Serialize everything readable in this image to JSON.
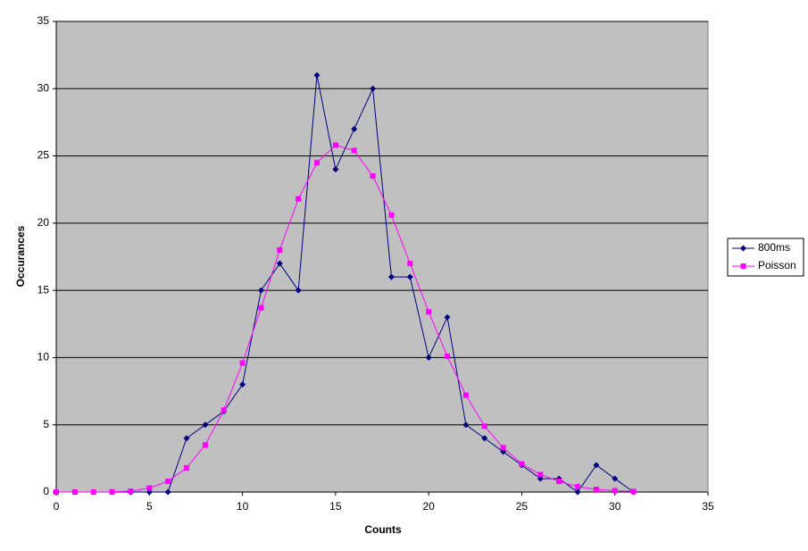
{
  "chart_data": {
    "type": "line",
    "x_label": "Counts",
    "y_label": "Occurances",
    "x": [
      0,
      1,
      2,
      3,
      4,
      5,
      6,
      7,
      8,
      9,
      10,
      11,
      12,
      13,
      14,
      15,
      16,
      17,
      18,
      19,
      20,
      21,
      22,
      23,
      24,
      25,
      26,
      27,
      28,
      29,
      30,
      31
    ],
    "series": [
      {
        "name": "800ms",
        "color": "#000080",
        "marker": "diamond",
        "values": [
          0,
          0,
          0,
          0,
          0,
          0,
          0,
          4,
          5,
          6,
          8,
          15,
          17,
          15,
          31,
          24,
          27,
          30,
          16,
          16,
          10,
          13,
          5,
          4,
          3,
          2,
          1,
          1,
          0,
          2,
          1,
          0
        ]
      },
      {
        "name": "Poisson",
        "color": "#ff00ff",
        "marker": "square",
        "values": [
          0,
          0,
          0,
          0.01,
          0.07,
          0.3,
          0.8,
          1.8,
          3.5,
          6.1,
          9.6,
          13.7,
          18,
          21.8,
          24.5,
          25.8,
          25.4,
          23.5,
          20.6,
          17,
          13.4,
          10.1,
          7.2,
          4.9,
          3.3,
          2.1,
          1.3,
          0.8,
          0.4,
          0.2,
          0.1,
          0.05
        ]
      }
    ],
    "xlim": [
      0,
      35
    ],
    "xticks": [
      0,
      5,
      10,
      15,
      20,
      25,
      30,
      35
    ],
    "ylim": [
      0,
      35
    ],
    "yticks": [
      0,
      5,
      10,
      15,
      20,
      25,
      30,
      35
    ],
    "grid": true,
    "legend": "right"
  }
}
